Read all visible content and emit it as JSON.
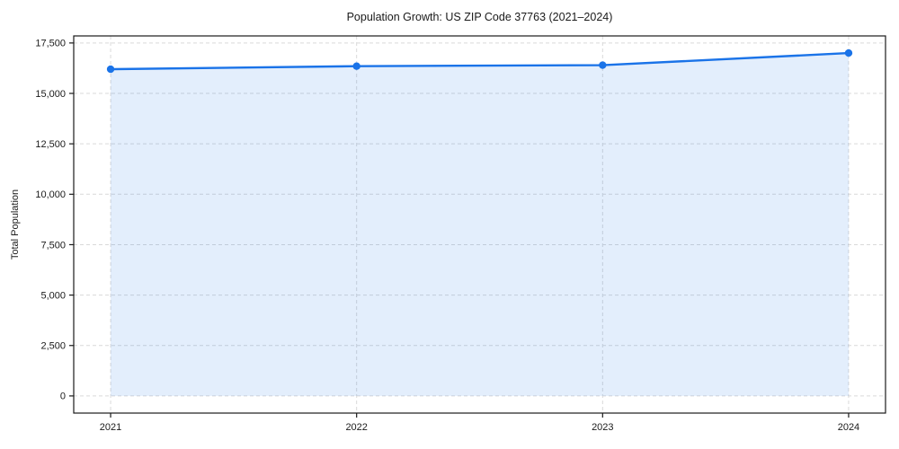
{
  "chart_data": {
    "type": "area",
    "title": "Population Growth: US ZIP Code 37763 (2021–2024)",
    "xlabel": "",
    "ylabel": "Total Population",
    "x": [
      2021,
      2022,
      2023,
      2024
    ],
    "xtick_labels": [
      "2021",
      "2022",
      "2023",
      "2024"
    ],
    "values": [
      16200,
      16350,
      16400,
      17000
    ],
    "yticks": [
      0,
      2500,
      5000,
      7500,
      10000,
      12500,
      15000,
      17500
    ],
    "ytick_labels": [
      "0",
      "2,500",
      "5,000",
      "7,500",
      "10,000",
      "12,500",
      "15,000",
      "17,500"
    ],
    "ylim": [
      -850,
      17850
    ],
    "xlim": [
      2020.85,
      2024.15
    ],
    "grid": true,
    "grid_style": "dashed",
    "legend": "none",
    "marker": "circle",
    "colors": {
      "line": "#1a73e8",
      "fill": "#1a73e8",
      "fill_opacity": 0.12,
      "grid": "#d9d9d9",
      "spine": "#1a1a1a",
      "text": "#1a1a1a",
      "background": "#ffffff"
    }
  }
}
